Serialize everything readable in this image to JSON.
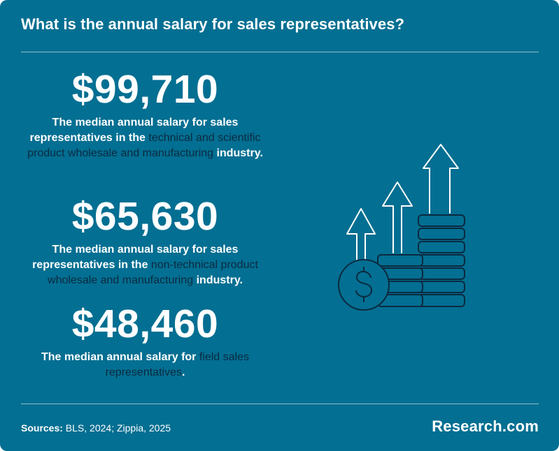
{
  "title": "What is the annual salary for sales representatives?",
  "stats": [
    {
      "value": "$99,710",
      "pre": "The median annual salary for sales representatives in the ",
      "highlight": "technical and scientific product wholesale and manufacturing",
      "post": " industry."
    },
    {
      "value": "$65,630",
      "pre": "The median annual salary for sales representatives in the ",
      "highlight": "non-technical product wholesale and manufacturing",
      "post": " industry."
    },
    {
      "value": "$48,460",
      "pre": "The median annual salary for ",
      "highlight": "field sales representatives",
      "post": "."
    }
  ],
  "icon": "coins-with-rising-arrows-icon",
  "footer": {
    "sources_label": "Sources:",
    "sources_text": " BLS, 2024; Zippia, 2025",
    "brand": "Research.com"
  },
  "colors": {
    "background": "#036f92",
    "highlight_text": "#0b2a40",
    "icon_stroke": "#0b2a40",
    "arrow_stroke": "#ffffff"
  }
}
